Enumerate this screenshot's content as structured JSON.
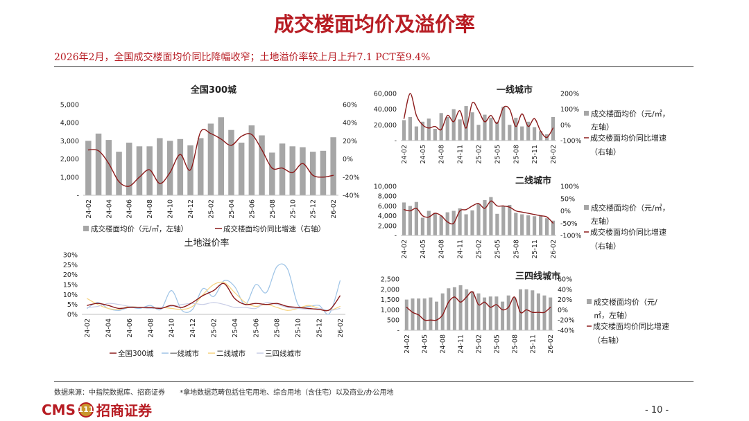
{
  "page": {
    "title": "成交楼面均价及溢价率",
    "subtitle": "2026年2月，全国成交楼面均价同比降幅收窄；土地溢价率较上月上升7.1 PCT至9.4%",
    "source": "数据来源：中指院数据库、招商证券",
    "note": "*拿地数据范畴包括住宅用地、综合用地（含住宅）以及商业/办公用地",
    "logo_text": "CMS",
    "logo_badge": "111",
    "logo_cn": "招商证券",
    "page_number": "- 10 -"
  },
  "colors": {
    "accent": "#b71c23",
    "bar": "#a6a6a6",
    "line": "#8b1a1a",
    "tier1": "#9dc3e6",
    "tier2": "#f6d27e",
    "tier3": "#c8cde6"
  },
  "chart_data": [
    {
      "id": "national",
      "type": "bar",
      "title": "全国300城",
      "categories": [
        "24-02",
        "24-03",
        "24-04",
        "24-05",
        "24-06",
        "24-07",
        "24-08",
        "24-09",
        "24-10",
        "24-11",
        "24-12",
        "25-01",
        "25-02",
        "25-03",
        "25-04",
        "25-05",
        "25-06",
        "25-07",
        "25-08",
        "25-09",
        "25-10",
        "25-11",
        "25-12",
        "26-01",
        "26-02"
      ],
      "tick_labels": [
        "24-02",
        "24-04",
        "24-06",
        "24-08",
        "24-10",
        "24-12",
        "25-02",
        "25-04",
        "25-06",
        "25-08",
        "25-10",
        "25-12",
        "26-02"
      ],
      "y_ticks": [
        "-",
        "1,000",
        "2,000",
        "3,000",
        "4,000",
        "5,000"
      ],
      "y2_ticks": [
        "-40%",
        "-20%",
        "0%",
        "20%",
        "40%",
        "60%"
      ],
      "ylim": [
        0,
        5000
      ],
      "y2lim": [
        -40,
        60
      ],
      "series": [
        {
          "name": "成交楼面均价（元/㎡，左轴）",
          "type": "bar",
          "values": [
            3000,
            3400,
            3050,
            2400,
            2900,
            2700,
            2700,
            3150,
            3000,
            3100,
            2750,
            3150,
            3950,
            4300,
            3600,
            2900,
            3850,
            3300,
            2350,
            2850,
            2700,
            2650,
            2400,
            2450,
            3200
          ]
        },
        {
          "name": "成交楼面均价同比增速（右轴）",
          "type": "line",
          "values": [
            10,
            9,
            -5,
            -25,
            -30,
            -20,
            -12,
            -27,
            -15,
            5,
            -12,
            30,
            28,
            22,
            15,
            25,
            27,
            10,
            -10,
            -10,
            -15,
            -5,
            -18,
            -20,
            -18
          ]
        }
      ],
      "legend": "bottom"
    },
    {
      "id": "premium",
      "type": "line",
      "title": "土地溢价率",
      "categories": [
        "24-02",
        "24-03",
        "24-04",
        "24-05",
        "24-06",
        "24-07",
        "24-08",
        "24-09",
        "24-10",
        "24-11",
        "24-12",
        "25-01",
        "25-02",
        "25-03",
        "25-04",
        "25-05",
        "25-06",
        "25-07",
        "25-08",
        "25-09",
        "25-10",
        "25-11",
        "25-12",
        "26-01",
        "26-02"
      ],
      "tick_labels": [
        "24-02",
        "24-04",
        "24-06",
        "24-08",
        "24-10",
        "24-12",
        "25-02",
        "25-04",
        "25-06",
        "25-08",
        "25-10",
        "25-12",
        "26-02"
      ],
      "y_ticks": [
        "0%",
        "5%",
        "10%",
        "15%",
        "20%",
        "25%",
        "30%"
      ],
      "ylim": [
        0,
        30
      ],
      "series": [
        {
          "name": "全国300城",
          "values": [
            4.5,
            5.5,
            4.5,
            3.0,
            3.5,
            3.5,
            3.5,
            3.0,
            4.5,
            3.5,
            6.0,
            9.5,
            12.0,
            15.5,
            8.0,
            5.0,
            5.5,
            5.0,
            5.5,
            4.0,
            3.5,
            3.0,
            2.5,
            2.3,
            9.4
          ]
        },
        {
          "name": "一线城市",
          "values": [
            3.0,
            6.0,
            3.0,
            2.0,
            3.5,
            3.0,
            4.5,
            2.5,
            12.0,
            2.0,
            2.5,
            13.0,
            9.0,
            17.0,
            14.0,
            5.0,
            15.0,
            11.0,
            24.0,
            23.0,
            5.0,
            4.0,
            4.5,
            0.5,
            17.0
          ]
        },
        {
          "name": "二线城市",
          "values": [
            8.0,
            5.0,
            3.0,
            2.5,
            4.0,
            3.5,
            3.0,
            3.5,
            3.0,
            2.5,
            4.0,
            10.0,
            15.0,
            16.0,
            11.0,
            6.0,
            4.0,
            5.0,
            3.5,
            2.0,
            3.0,
            4.5,
            3.0,
            2.0,
            4.0
          ]
        },
        {
          "name": "三四线城市",
          "values": [
            3.5,
            4.0,
            5.5,
            5.0,
            4.0,
            3.5,
            3.0,
            3.5,
            4.0,
            5.0,
            5.5,
            5.0,
            6.0,
            5.0,
            3.5,
            3.5,
            3.0,
            6.0,
            5.0,
            3.5,
            3.0,
            2.5,
            3.0,
            2.0,
            3.0
          ]
        }
      ],
      "legend": "bottom"
    },
    {
      "id": "tier1",
      "type": "bar",
      "title": "一线城市",
      "categories": [
        "24-02",
        "24-03",
        "24-04",
        "24-05",
        "24-06",
        "24-07",
        "24-08",
        "24-09",
        "24-10",
        "24-11",
        "24-12",
        "25-01",
        "25-02",
        "25-03",
        "25-04",
        "25-05",
        "25-06",
        "25-07",
        "25-08",
        "25-09",
        "25-10",
        "25-11",
        "25-12",
        "26-01",
        "26-02"
      ],
      "tick_labels": [
        "24-02",
        "24-05",
        "24-08",
        "24-11",
        "25-02",
        "25-05",
        "25-08",
        "25-11",
        "26-02"
      ],
      "y_ticks": [
        "-",
        "20,000",
        "40,000",
        "60,000"
      ],
      "y2_ticks": [
        "-100%",
        "0%",
        "100%",
        "200%"
      ],
      "ylim": [
        0,
        60000
      ],
      "y2lim": [
        -100,
        200
      ],
      "series": [
        {
          "name": "成交楼面均价（元/㎡，左轴）",
          "type": "bar",
          "values": [
            26000,
            30000,
            18000,
            24000,
            28000,
            15000,
            35000,
            30000,
            40000,
            27000,
            44000,
            36000,
            20000,
            33000,
            29000,
            24000,
            43000,
            20000,
            29000,
            18000,
            24000,
            17000,
            12000,
            8000,
            30000
          ]
        },
        {
          "name": "成交楼面均价同比增速（右轴）",
          "type": "line",
          "values": [
            40,
            200,
            60,
            0,
            -20,
            -10,
            -30,
            60,
            20,
            90,
            -20,
            140,
            90,
            20,
            60,
            10,
            110,
            100,
            -10,
            70,
            -10,
            40,
            -40,
            -80,
            -20
          ]
        }
      ],
      "legend": "right"
    },
    {
      "id": "tier2",
      "type": "bar",
      "title": "二线城市",
      "categories": [
        "24-02",
        "24-03",
        "24-04",
        "24-05",
        "24-06",
        "24-07",
        "24-08",
        "24-09",
        "24-10",
        "24-11",
        "24-12",
        "25-01",
        "25-02",
        "25-03",
        "25-04",
        "25-05",
        "25-06",
        "25-07",
        "25-08",
        "25-09",
        "25-10",
        "25-11",
        "25-12",
        "26-01",
        "26-02"
      ],
      "tick_labels": [
        "24-02",
        "24-05",
        "24-08",
        "24-11",
        "25-02",
        "25-05",
        "25-08",
        "25-11",
        "26-02"
      ],
      "y_ticks": [
        "-",
        "2,000",
        "4,000",
        "6,000",
        "8,000",
        "10,000"
      ],
      "y2_ticks": [
        "-100%",
        "-50%",
        "0%",
        "50%",
        "100%"
      ],
      "ylim": [
        0,
        10000
      ],
      "y2lim": [
        -100,
        100
      ],
      "series": [
        {
          "name": "成交楼面均价（元/㎡，左轴）",
          "type": "bar",
          "values": [
            6700,
            6000,
            6800,
            3600,
            5000,
            4600,
            4000,
            4700,
            5000,
            5500,
            4300,
            5100,
            6500,
            7200,
            7800,
            4400,
            6000,
            6200,
            4600,
            4300,
            4100,
            3900,
            4000,
            3500,
            3000
          ]
        },
        {
          "name": "成交楼面均价同比增速（右轴）",
          "type": "line",
          "values": [
            5,
            0,
            10,
            -20,
            -25,
            -10,
            -20,
            -45,
            -50,
            0,
            5,
            20,
            30,
            10,
            40,
            20,
            20,
            15,
            0,
            -5,
            -10,
            -15,
            -20,
            -25,
            -50
          ]
        }
      ],
      "legend": "right"
    },
    {
      "id": "tier34",
      "type": "bar",
      "title": "三四线城市",
      "categories": [
        "24-02",
        "24-03",
        "24-04",
        "24-05",
        "24-06",
        "24-07",
        "24-08",
        "24-09",
        "24-10",
        "24-11",
        "24-12",
        "25-01",
        "25-02",
        "25-03",
        "25-04",
        "25-05",
        "25-06",
        "25-07",
        "25-08",
        "25-09",
        "25-10",
        "25-11",
        "25-12",
        "26-01",
        "26-02"
      ],
      "tick_labels": [
        "24-02",
        "24-05",
        "24-08",
        "24-11",
        "25-02",
        "25-05",
        "25-08",
        "25-11",
        "26-02"
      ],
      "y_ticks": [
        "-",
        "500",
        "1,000",
        "1,500",
        "2,000",
        "2,500"
      ],
      "y2_ticks": [
        "-40%",
        "-20%",
        "0%",
        "20%",
        "40%",
        "60%"
      ],
      "ylim": [
        0,
        2500
      ],
      "y2lim": [
        -40,
        60
      ],
      "series": [
        {
          "name": "成交楼面均价（元/㎡，左轴）",
          "type": "bar",
          "values": [
            1500,
            1550,
            1550,
            1550,
            1600,
            1400,
            1800,
            2050,
            2100,
            2200,
            2000,
            1900,
            1800,
            1600,
            1650,
            1650,
            1400,
            1700,
            1600,
            2000,
            2000,
            1950,
            1800,
            1700,
            1600
          ]
        },
        {
          "name": "成交楼面均价同比增速（右轴）",
          "type": "line",
          "values": [
            5,
            -5,
            -10,
            -20,
            -20,
            -20,
            -10,
            15,
            25,
            15,
            25,
            35,
            10,
            15,
            5,
            10,
            0,
            5,
            25,
            -5,
            0,
            -5,
            -5,
            -5,
            5
          ]
        }
      ],
      "legend": "right"
    }
  ]
}
